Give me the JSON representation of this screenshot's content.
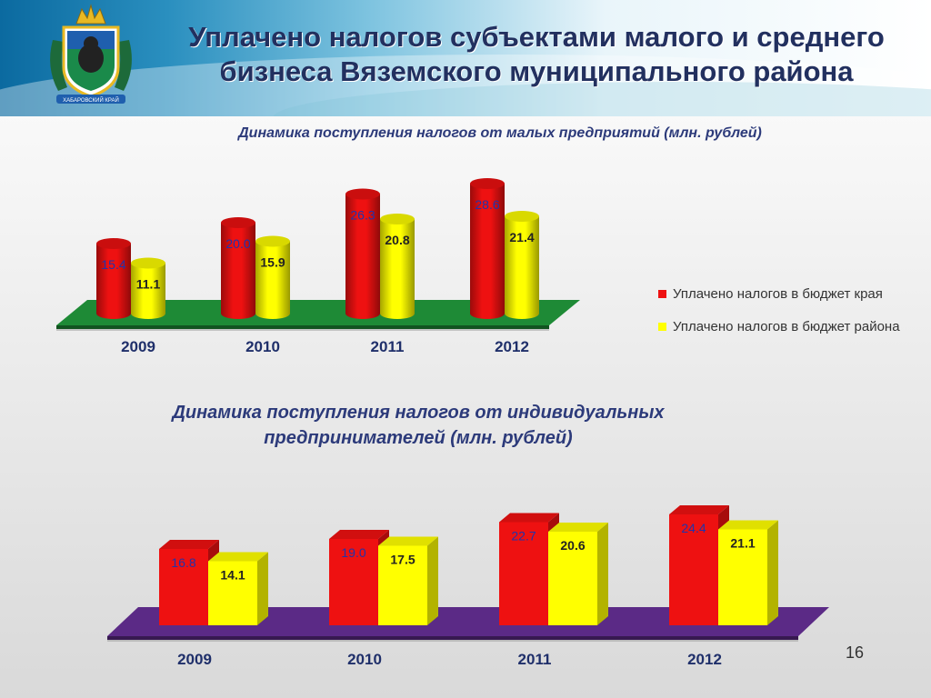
{
  "header": {
    "title_line1": "Уплачено налогов субъектами малого и среднего",
    "title_line2": "бизнеса Вяземского муниципального района",
    "emblem_text": "ХАБАРОВСКИЙ КРАЙ"
  },
  "legend": {
    "items": [
      {
        "label": "Уплачено налогов в бюджет края",
        "color": "#ee1111"
      },
      {
        "label": "Уплачено налогов в бюджет района",
        "color": "#ffff00"
      }
    ]
  },
  "page_number": "16",
  "chart_data": [
    {
      "type": "bar",
      "title": "Динамика поступления налогов от малых предприятий (млн. рублей)",
      "categories": [
        "2009",
        "2010",
        "2011",
        "2012"
      ],
      "series": [
        {
          "name": "Уплачено налогов в бюджет края",
          "color": "#ee1111",
          "values": [
            15.4,
            20.0,
            26.3,
            28.6
          ]
        },
        {
          "name": "Уплачено налогов в бюджет района",
          "color": "#ffff00",
          "values": [
            11.1,
            15.9,
            20.8,
            21.4
          ]
        }
      ],
      "floor_color": "#1e8a36",
      "shape": "cylinder",
      "legend_position": "right"
    },
    {
      "type": "bar",
      "title": "Динамика поступления налогов от индивидуальных предпринимателей (млн. рублей)",
      "categories": [
        "2009",
        "2010",
        "2011",
        "2012"
      ],
      "series": [
        {
          "name": "Уплачено налогов в бюджет края",
          "color": "#ee1111",
          "values": [
            16.8,
            19.0,
            22.7,
            24.4
          ]
        },
        {
          "name": "Уплачено налогов в бюджет района",
          "color": "#ffff00",
          "values": [
            14.1,
            17.5,
            20.6,
            21.1
          ]
        }
      ],
      "floor_color": "#5b2a86",
      "shape": "box"
    }
  ]
}
